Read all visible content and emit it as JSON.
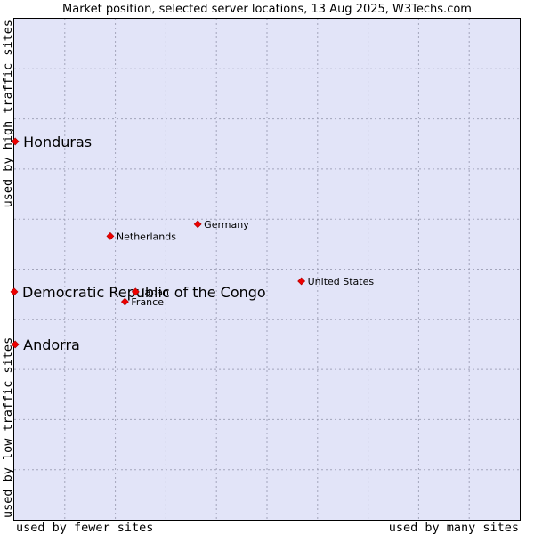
{
  "chart_data": {
    "type": "scatter",
    "title": "Market position, selected server locations, 13 Aug 2025, W3Techs.com",
    "xlabel_left": "used by fewer sites",
    "xlabel_right": "used by many sites",
    "ylabel_bottom": "used by low traffic sites",
    "ylabel_top": "used by high traffic sites",
    "xlim": [
      0,
      100
    ],
    "ylim": [
      0,
      100
    ],
    "grid": true,
    "colors": {
      "plot_bg": "#e2e4f8",
      "grid": "#a3a5bb",
      "border": "#000000",
      "marker": "#ee0000"
    },
    "points": [
      {
        "label": "Honduras",
        "x": 0.2,
        "y": 75.5,
        "size": "large"
      },
      {
        "label": "Democratic Republic of the Congo",
        "x": 0.0,
        "y": 45.5,
        "size": "large"
      },
      {
        "label": "Andorra",
        "x": 0.2,
        "y": 35.0,
        "size": "large"
      },
      {
        "label": "Netherlands",
        "x": 19.0,
        "y": 56.6,
        "size": "small"
      },
      {
        "label": "Germany",
        "x": 36.3,
        "y": 59.0,
        "size": "small"
      },
      {
        "label": "United States",
        "x": 56.8,
        "y": 47.6,
        "size": "small"
      },
      {
        "label": "Japan",
        "x": 24.0,
        "y": 45.5,
        "size": "small"
      },
      {
        "label": "France",
        "x": 21.9,
        "y": 43.5,
        "size": "small"
      }
    ]
  }
}
